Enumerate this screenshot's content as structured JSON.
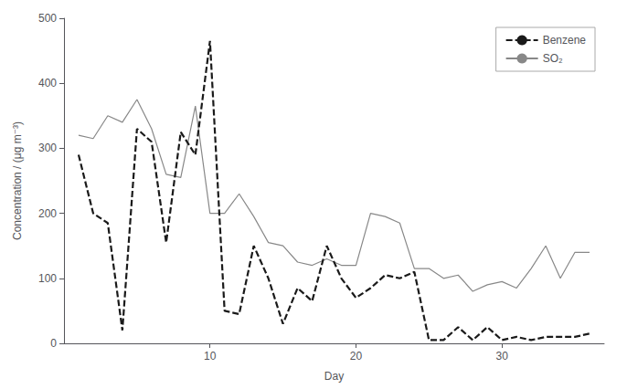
{
  "chart_data": {
    "type": "line",
    "x": [
      1,
      2,
      3,
      4,
      5,
      6,
      7,
      8,
      9,
      10,
      11,
      12,
      13,
      14,
      15,
      16,
      17,
      18,
      19,
      20,
      21,
      22,
      23,
      24,
      25,
      26,
      27,
      28,
      29,
      30,
      31,
      32,
      33,
      34,
      35,
      36
    ],
    "series": [
      {
        "name": "SO₂",
        "color": "#888888",
        "line_style": "solid",
        "values": [
          320,
          315,
          350,
          340,
          375,
          330,
          260,
          255,
          365,
          200,
          200,
          230,
          195,
          155,
          150,
          125,
          120,
          130,
          120,
          120,
          200,
          195,
          185,
          115,
          115,
          100,
          105,
          80,
          90,
          95,
          85,
          115,
          150,
          100,
          140,
          140
        ]
      },
      {
        "name": "Benzene",
        "color": "#1a1a1a",
        "line_style": "dashed",
        "values": [
          290,
          200,
          185,
          20,
          330,
          310,
          155,
          325,
          290,
          465,
          50,
          45,
          150,
          100,
          30,
          85,
          65,
          150,
          100,
          70,
          85,
          105,
          100,
          110,
          5,
          5,
          25,
          5,
          25,
          5,
          10,
          5,
          10,
          10,
          10,
          15
        ]
      }
    ],
    "xlabel": "Day",
    "ylabel": "Concentration / (μg m⁻³)",
    "xlim": [
      0,
      37
    ],
    "xticks": [
      10,
      20,
      30
    ],
    "ylim": [
      0,
      500
    ],
    "yticks": [
      0,
      100,
      200,
      300,
      400,
      500
    ],
    "grid": false,
    "legend": "upper right"
  }
}
